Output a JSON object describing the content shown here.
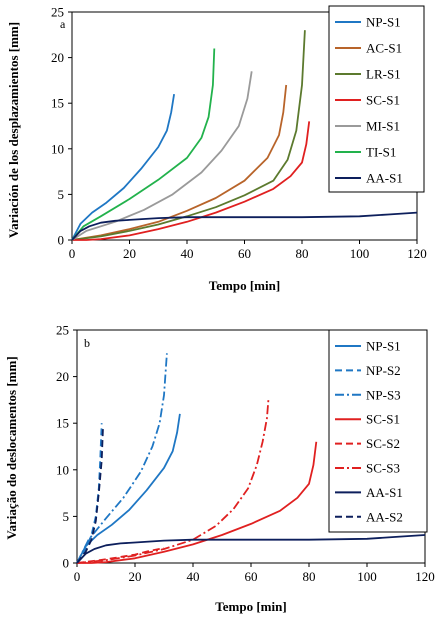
{
  "chart_data": [
    {
      "type": "line",
      "panel_label": "a",
      "xlabel": "Tempo [min]",
      "ylabel": "Variación de los desplazamientos [mm]",
      "xlim": [
        0,
        120
      ],
      "ylim": [
        0,
        25
      ],
      "xticks": [
        "0",
        "20",
        "40",
        "60",
        "80",
        "100",
        "120"
      ],
      "yticks": [
        "0",
        "5",
        "10",
        "15",
        "20",
        "25"
      ],
      "grid": false,
      "legend_position": "right",
      "series": [
        {
          "name": "NP-S1",
          "color": "#1f77c4",
          "dash": "solid",
          "x": [
            0,
            3,
            7,
            12,
            18,
            24,
            30,
            33,
            34.5,
            35.5
          ],
          "y": [
            0,
            1.8,
            3.0,
            4.1,
            5.7,
            7.8,
            10.2,
            12.0,
            14.0,
            16.0
          ]
        },
        {
          "name": "AC-S1",
          "color": "#b8642a",
          "dash": "solid",
          "x": [
            0,
            10,
            20,
            30,
            40,
            50,
            60,
            68,
            72,
            73.5,
            74.5
          ],
          "y": [
            0,
            0.5,
            1.2,
            2.0,
            3.2,
            4.6,
            6.5,
            9.0,
            11.5,
            14.0,
            17.0
          ]
        },
        {
          "name": "LR-S1",
          "color": "#5c7a2e",
          "dash": "solid",
          "x": [
            0,
            10,
            20,
            30,
            40,
            50,
            60,
            70,
            75,
            78,
            80,
            81
          ],
          "y": [
            0,
            0.4,
            1.0,
            1.7,
            2.6,
            3.6,
            4.9,
            6.5,
            8.8,
            12.0,
            17.0,
            23.0
          ]
        },
        {
          "name": "SC-S1",
          "color": "#e02020",
          "dash": "solid",
          "x": [
            0,
            5,
            10,
            20,
            30,
            40,
            50,
            60,
            70,
            76,
            80,
            81.5,
            82.5
          ],
          "y": [
            0,
            0,
            0.1,
            0.5,
            1.2,
            2.0,
            3.0,
            4.2,
            5.6,
            7.0,
            8.5,
            10.5,
            13.0
          ]
        },
        {
          "name": "MI-S1",
          "color": "#9a9a9a",
          "dash": "solid",
          "x": [
            0,
            5,
            15,
            25,
            35,
            45,
            52,
            58,
            61,
            62.5
          ],
          "y": [
            0,
            1.0,
            2.0,
            3.3,
            5.0,
            7.4,
            9.8,
            12.5,
            15.5,
            18.5
          ]
        },
        {
          "name": "TI-S1",
          "color": "#22b24c",
          "dash": "solid",
          "x": [
            0,
            4,
            10,
            20,
            30,
            40,
            45,
            47.5,
            49,
            49.5
          ],
          "y": [
            0,
            1.5,
            2.6,
            4.5,
            6.6,
            9.0,
            11.2,
            13.5,
            17.0,
            21.0
          ]
        },
        {
          "name": "AA-S1",
          "color": "#0d1f5c",
          "dash": "solid",
          "x": [
            0,
            3,
            6,
            10,
            15,
            20,
            30,
            40,
            60,
            80,
            100,
            110,
            120
          ],
          "y": [
            0,
            1.0,
            1.5,
            1.9,
            2.1,
            2.2,
            2.4,
            2.5,
            2.5,
            2.5,
            2.6,
            2.8,
            3.0
          ]
        }
      ]
    },
    {
      "type": "line",
      "panel_label": "b",
      "xlabel": "Tempo [min]",
      "ylabel": "Variação do deslocamentos [mm]",
      "xlim": [
        0,
        120
      ],
      "ylim": [
        0,
        25
      ],
      "xticks": [
        "0",
        "20",
        "40",
        "60",
        "80",
        "100",
        "120"
      ],
      "yticks": [
        "0",
        "5",
        "10",
        "15",
        "20",
        "25"
      ],
      "grid": false,
      "legend_position": "right",
      "series": [
        {
          "name": "NP-S1",
          "color": "#1f77c4",
          "dash": "solid",
          "x": [
            0,
            3,
            7,
            12,
            18,
            24,
            30,
            33,
            34.5,
            35.5
          ],
          "y": [
            0,
            1.8,
            3.0,
            4.1,
            5.7,
            7.8,
            10.2,
            12.0,
            14.0,
            16.0
          ]
        },
        {
          "name": "NP-S2",
          "color": "#1f77c4",
          "dash": "dash",
          "x": [
            0,
            3,
            5,
            6.5,
            7.5,
            8,
            8.5
          ],
          "y": [
            0,
            1.5,
            3.0,
            5.0,
            8.0,
            11.0,
            15.0
          ]
        },
        {
          "name": "NP-S3",
          "color": "#1f77c4",
          "dash": "dashdot",
          "x": [
            0,
            4,
            10,
            16,
            22,
            26,
            28.5,
            30,
            31
          ],
          "y": [
            0,
            2.5,
            4.8,
            7.0,
            9.8,
            12.5,
            15.0,
            18.0,
            22.5
          ]
        },
        {
          "name": "SC-S1",
          "color": "#e02020",
          "dash": "solid",
          "x": [
            0,
            5,
            10,
            20,
            30,
            40,
            50,
            60,
            70,
            76,
            80,
            81.5,
            82.5
          ],
          "y": [
            0,
            0,
            0.1,
            0.5,
            1.2,
            2.0,
            3.0,
            4.2,
            5.6,
            7.0,
            8.5,
            10.5,
            13.0
          ]
        },
        {
          "name": "SC-S2",
          "color": "#e02020",
          "dash": "dash",
          "x": [
            0,
            10,
            20,
            25,
            30
          ],
          "y": [
            0,
            0.4,
            0.9,
            1.3,
            1.6
          ]
        },
        {
          "name": "SC-S3",
          "color": "#e02020",
          "dash": "dashdot",
          "x": [
            0,
            10,
            20,
            30,
            40,
            48,
            54,
            59,
            62,
            64,
            65.5,
            66
          ],
          "y": [
            0,
            0.3,
            0.8,
            1.5,
            2.5,
            4.0,
            5.8,
            8.0,
            10.5,
            13.0,
            15.5,
            17.5
          ]
        },
        {
          "name": "AA-S1",
          "color": "#0d1f5c",
          "dash": "solid",
          "x": [
            0,
            3,
            6,
            10,
            15,
            20,
            30,
            40,
            60,
            80,
            100,
            110,
            120
          ],
          "y": [
            0,
            1.0,
            1.5,
            1.9,
            2.1,
            2.2,
            2.4,
            2.5,
            2.5,
            2.5,
            2.6,
            2.8,
            3.0
          ]
        },
        {
          "name": "AA-S2",
          "color": "#0d1f5c",
          "dash": "dash",
          "x": [
            0,
            3,
            5,
            6.5,
            7.5,
            8.5,
            9
          ],
          "y": [
            0,
            1.2,
            2.5,
            4.5,
            7.5,
            11.0,
            14.8
          ]
        }
      ]
    }
  ]
}
